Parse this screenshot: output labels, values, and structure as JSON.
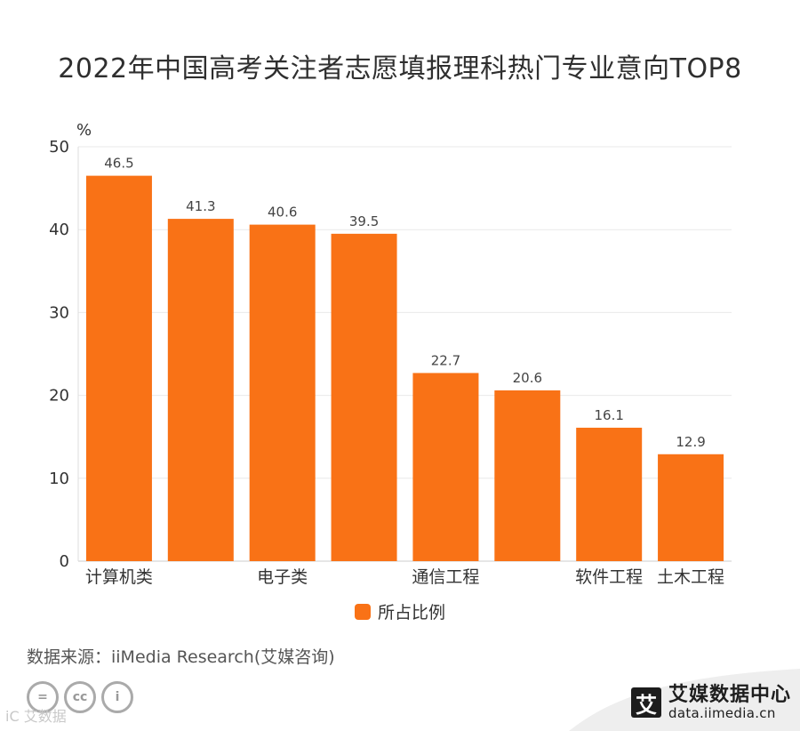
{
  "page": {
    "title": "2022年中国高考关注者志愿填报理科热门专业意向TOP8",
    "source": "数据来源：iiMedia Research(艾媒咨询)",
    "watermark": "iC  艾数据",
    "brand_name": "艾媒数据中心",
    "brand_url": "data.iimedia.cn",
    "brand_logo": "艾",
    "license_icons": [
      "=",
      "cc",
      "i"
    ]
  },
  "colors": {
    "bar": "#f97216",
    "grid": "#e9e9e9",
    "axis_text": "#333333",
    "label_text": "#444444"
  },
  "chart_data": {
    "type": "bar",
    "unit_label": "%",
    "categories": [
      "计算机类",
      "",
      "电子类",
      "",
      "通信工程",
      "",
      "软件工程",
      "土木工程"
    ],
    "series": [
      {
        "name": "所占比例",
        "values": [
          46.5,
          41.3,
          40.6,
          39.5,
          22.7,
          20.6,
          16.1,
          12.9
        ]
      }
    ],
    "ylim": [
      0,
      50
    ],
    "yticks": [
      0,
      10,
      20,
      30,
      40,
      50
    ],
    "grid": true,
    "legend_position": "bottom-center",
    "data_labels": true
  }
}
